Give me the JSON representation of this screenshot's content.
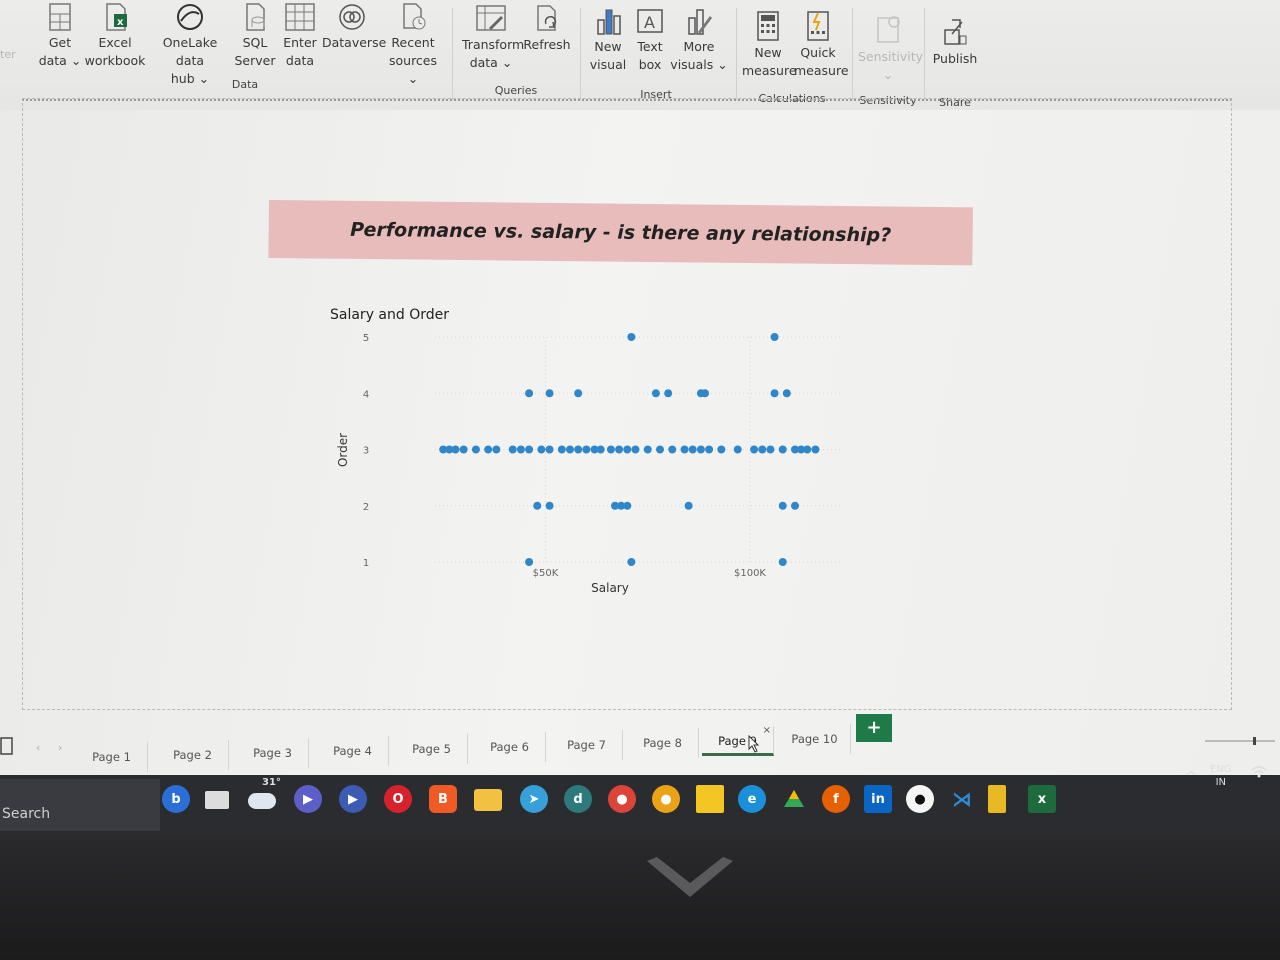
{
  "ribbon": {
    "left_cut_label": "ter",
    "data_group": {
      "label": "Data",
      "buttons": [
        {
          "line1": "Get",
          "line2": "data ⌄"
        },
        {
          "line1": "Excel",
          "line2": "workbook"
        },
        {
          "line1": "OneLake data",
          "line2": "hub ⌄"
        },
        {
          "line1": "SQL",
          "line2": "Server"
        },
        {
          "line1": "Enter",
          "line2": "data"
        },
        {
          "line1": "Dataverse",
          "line2": ""
        },
        {
          "line1": "Recent",
          "line2": "sources ⌄"
        }
      ]
    },
    "queries_group": {
      "label": "Queries",
      "buttons": [
        {
          "line1": "Transform",
          "line2": "data ⌄"
        },
        {
          "line1": "Refresh",
          "line2": ""
        }
      ]
    },
    "insert_group": {
      "label": "Insert",
      "buttons": [
        {
          "line1": "New",
          "line2": "visual"
        },
        {
          "line1": "Text",
          "line2": "box"
        },
        {
          "line1": "More",
          "line2": "visuals ⌄"
        }
      ]
    },
    "calculations_group": {
      "label": "Calculations",
      "buttons": [
        {
          "line1": "New",
          "line2": "measure"
        },
        {
          "line1": "Quick",
          "line2": "measure"
        }
      ]
    },
    "sensitivity_group": {
      "label": "Sensitivity",
      "buttons": [
        {
          "line1": "Sensitivity",
          "line2": "⌄"
        }
      ]
    },
    "share_group": {
      "label": "Share",
      "buttons": [
        {
          "line1": "Publish",
          "line2": ""
        }
      ]
    }
  },
  "banner": {
    "title": "Performance vs. salary - is there any relationship?"
  },
  "chart_data": {
    "type": "scatter",
    "title": "Salary and Order",
    "xlabel": "Salary",
    "ylabel": "Order",
    "xlim": [
      23000,
      122000
    ],
    "ylim": [
      1,
      5
    ],
    "x_ticks": [
      {
        "value": 50000,
        "label": "$50K"
      },
      {
        "value": 100000,
        "label": "$100K"
      }
    ],
    "y_ticks": [
      1,
      2,
      3,
      4,
      5
    ],
    "grid": true,
    "color": "#2f86c9",
    "points": [
      {
        "x": 71000,
        "y": 5
      },
      {
        "x": 106000,
        "y": 5
      },
      {
        "x": 46000,
        "y": 4
      },
      {
        "x": 51000,
        "y": 4
      },
      {
        "x": 58000,
        "y": 4
      },
      {
        "x": 77000,
        "y": 4
      },
      {
        "x": 80000,
        "y": 4
      },
      {
        "x": 88000,
        "y": 4
      },
      {
        "x": 89000,
        "y": 4
      },
      {
        "x": 106000,
        "y": 4
      },
      {
        "x": 109000,
        "y": 4
      },
      {
        "x": 25000,
        "y": 3
      },
      {
        "x": 26500,
        "y": 3
      },
      {
        "x": 28000,
        "y": 3
      },
      {
        "x": 30000,
        "y": 3
      },
      {
        "x": 33000,
        "y": 3
      },
      {
        "x": 36000,
        "y": 3
      },
      {
        "x": 38000,
        "y": 3
      },
      {
        "x": 42000,
        "y": 3
      },
      {
        "x": 44000,
        "y": 3
      },
      {
        "x": 46000,
        "y": 3
      },
      {
        "x": 49000,
        "y": 3
      },
      {
        "x": 51000,
        "y": 3
      },
      {
        "x": 54000,
        "y": 3
      },
      {
        "x": 56000,
        "y": 3
      },
      {
        "x": 58000,
        "y": 3
      },
      {
        "x": 60000,
        "y": 3
      },
      {
        "x": 62000,
        "y": 3
      },
      {
        "x": 63500,
        "y": 3
      },
      {
        "x": 66000,
        "y": 3
      },
      {
        "x": 68000,
        "y": 3
      },
      {
        "x": 70000,
        "y": 3
      },
      {
        "x": 72000,
        "y": 3
      },
      {
        "x": 75000,
        "y": 3
      },
      {
        "x": 78000,
        "y": 3
      },
      {
        "x": 81000,
        "y": 3
      },
      {
        "x": 84000,
        "y": 3
      },
      {
        "x": 86000,
        "y": 3
      },
      {
        "x": 88000,
        "y": 3
      },
      {
        "x": 90000,
        "y": 3
      },
      {
        "x": 93000,
        "y": 3
      },
      {
        "x": 97000,
        "y": 3
      },
      {
        "x": 101000,
        "y": 3
      },
      {
        "x": 103000,
        "y": 3
      },
      {
        "x": 105000,
        "y": 3
      },
      {
        "x": 108000,
        "y": 3
      },
      {
        "x": 111000,
        "y": 3
      },
      {
        "x": 112500,
        "y": 3
      },
      {
        "x": 114000,
        "y": 3
      },
      {
        "x": 116000,
        "y": 3
      },
      {
        "x": 48000,
        "y": 2
      },
      {
        "x": 51000,
        "y": 2
      },
      {
        "x": 67000,
        "y": 2
      },
      {
        "x": 68500,
        "y": 2
      },
      {
        "x": 70000,
        "y": 2
      },
      {
        "x": 85000,
        "y": 2
      },
      {
        "x": 108000,
        "y": 2
      },
      {
        "x": 111000,
        "y": 2
      },
      {
        "x": 46000,
        "y": 1
      },
      {
        "x": 71000,
        "y": 1
      },
      {
        "x": 108000,
        "y": 1
      }
    ]
  },
  "pages": {
    "tabs": [
      "Page 1",
      "Page 2",
      "Page 3",
      "Page 4",
      "Page 5",
      "Page 6",
      "Page 7",
      "Page 8",
      "Page 9",
      "Page 10"
    ],
    "active": "Page 9",
    "close_glyph": "×",
    "add_glyph": "+"
  },
  "taskbar": {
    "search_label": "Search",
    "weather_temp": "31°",
    "lang_line1": "ENG",
    "lang_line2": "IN"
  }
}
